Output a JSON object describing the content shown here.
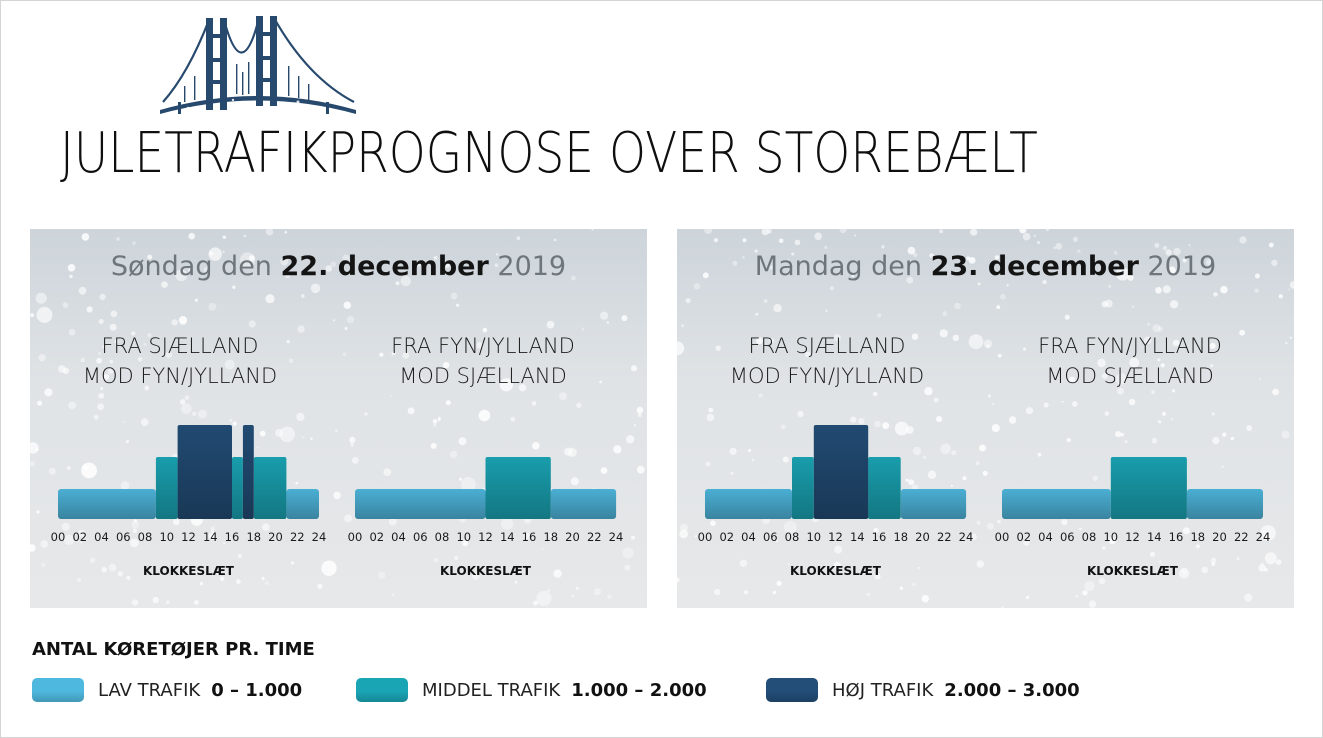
{
  "title": "JULETRAFIKPROGNOSE OVER STOREBÆLT",
  "colors": {
    "lav": "#4fb8de",
    "middel": "#1aa5b5",
    "hoj": "#234e78"
  },
  "panels": [
    {
      "date_prefix": "Søndag den",
      "date_bold": "22. december",
      "date_suffix": "2019",
      "directions": [
        {
          "line1": "FRA SJÆLLAND",
          "line2": "MOD FYN/JYLLAND"
        },
        {
          "line1": "FRA FYN/JYLLAND",
          "line2": "MOD SJÆLLAND"
        }
      ]
    },
    {
      "date_prefix": "Mandag den",
      "date_bold": "23. december",
      "date_suffix": "2019",
      "directions": [
        {
          "line1": "FRA SJÆLLAND",
          "line2": "MOD FYN/JYLLAND"
        },
        {
          "line1": "FRA FYN/JYLLAND",
          "line2": "MOD SJÆLLAND"
        }
      ]
    }
  ],
  "chart_data": [
    {
      "type": "bar",
      "title": "",
      "xlabel": "KLOKKESLÆT",
      "x_ticks": [
        "00",
        "02",
        "04",
        "06",
        "08",
        "10",
        "12",
        "14",
        "16",
        "18",
        "20",
        "22",
        "24"
      ],
      "xlim": [
        0,
        24
      ],
      "levels": [
        "lav",
        "middel",
        "hoj"
      ],
      "segments": [
        {
          "from": 0,
          "to": 9,
          "level": "lav"
        },
        {
          "from": 9,
          "to": 11,
          "level": "middel"
        },
        {
          "from": 11,
          "to": 16,
          "level": "hoj"
        },
        {
          "from": 16,
          "to": 17,
          "level": "middel"
        },
        {
          "from": 17,
          "to": 18,
          "level": "hoj"
        },
        {
          "from": 18,
          "to": 21,
          "level": "middel"
        },
        {
          "from": 21,
          "to": 24,
          "level": "lav"
        }
      ]
    },
    {
      "type": "bar",
      "title": "",
      "xlabel": "KLOKKESLÆT",
      "x_ticks": [
        "00",
        "02",
        "04",
        "06",
        "08",
        "10",
        "12",
        "14",
        "16",
        "18",
        "20",
        "22",
        "24"
      ],
      "xlim": [
        0,
        24
      ],
      "levels": [
        "lav",
        "middel",
        "hoj"
      ],
      "segments": [
        {
          "from": 0,
          "to": 12,
          "level": "lav"
        },
        {
          "from": 12,
          "to": 18,
          "level": "middel"
        },
        {
          "from": 18,
          "to": 24,
          "level": "lav"
        }
      ]
    },
    {
      "type": "bar",
      "title": "",
      "xlabel": "KLOKKESLÆT",
      "x_ticks": [
        "00",
        "02",
        "04",
        "06",
        "08",
        "10",
        "12",
        "14",
        "16",
        "18",
        "20",
        "22",
        "24"
      ],
      "xlim": [
        0,
        24
      ],
      "levels": [
        "lav",
        "middel",
        "hoj"
      ],
      "segments": [
        {
          "from": 0,
          "to": 8,
          "level": "lav"
        },
        {
          "from": 8,
          "to": 10,
          "level": "middel"
        },
        {
          "from": 10,
          "to": 15,
          "level": "hoj"
        },
        {
          "from": 15,
          "to": 18,
          "level": "middel"
        },
        {
          "from": 18,
          "to": 24,
          "level": "lav"
        }
      ]
    },
    {
      "type": "bar",
      "title": "",
      "xlabel": "KLOKKESLÆT",
      "x_ticks": [
        "00",
        "02",
        "04",
        "06",
        "08",
        "10",
        "12",
        "14",
        "16",
        "18",
        "20",
        "22",
        "24"
      ],
      "xlim": [
        0,
        24
      ],
      "levels": [
        "lav",
        "middel",
        "hoj"
      ],
      "segments": [
        {
          "from": 0,
          "to": 10,
          "level": "lav"
        },
        {
          "from": 10,
          "to": 17,
          "level": "middel"
        },
        {
          "from": 17,
          "to": 24,
          "level": "lav"
        }
      ]
    }
  ],
  "legend": {
    "title": "ANTAL KØRETØJER PR. TIME",
    "items": [
      {
        "key": "lav",
        "name": "LAV TRAFIK",
        "range": "0 – 1.000"
      },
      {
        "key": "middel",
        "name": "MIDDEL TRAFIK",
        "range": "1.000 – 2.000"
      },
      {
        "key": "hoj",
        "name": "HØJ TRAFIK",
        "range": "2.000 – 3.000"
      }
    ]
  }
}
